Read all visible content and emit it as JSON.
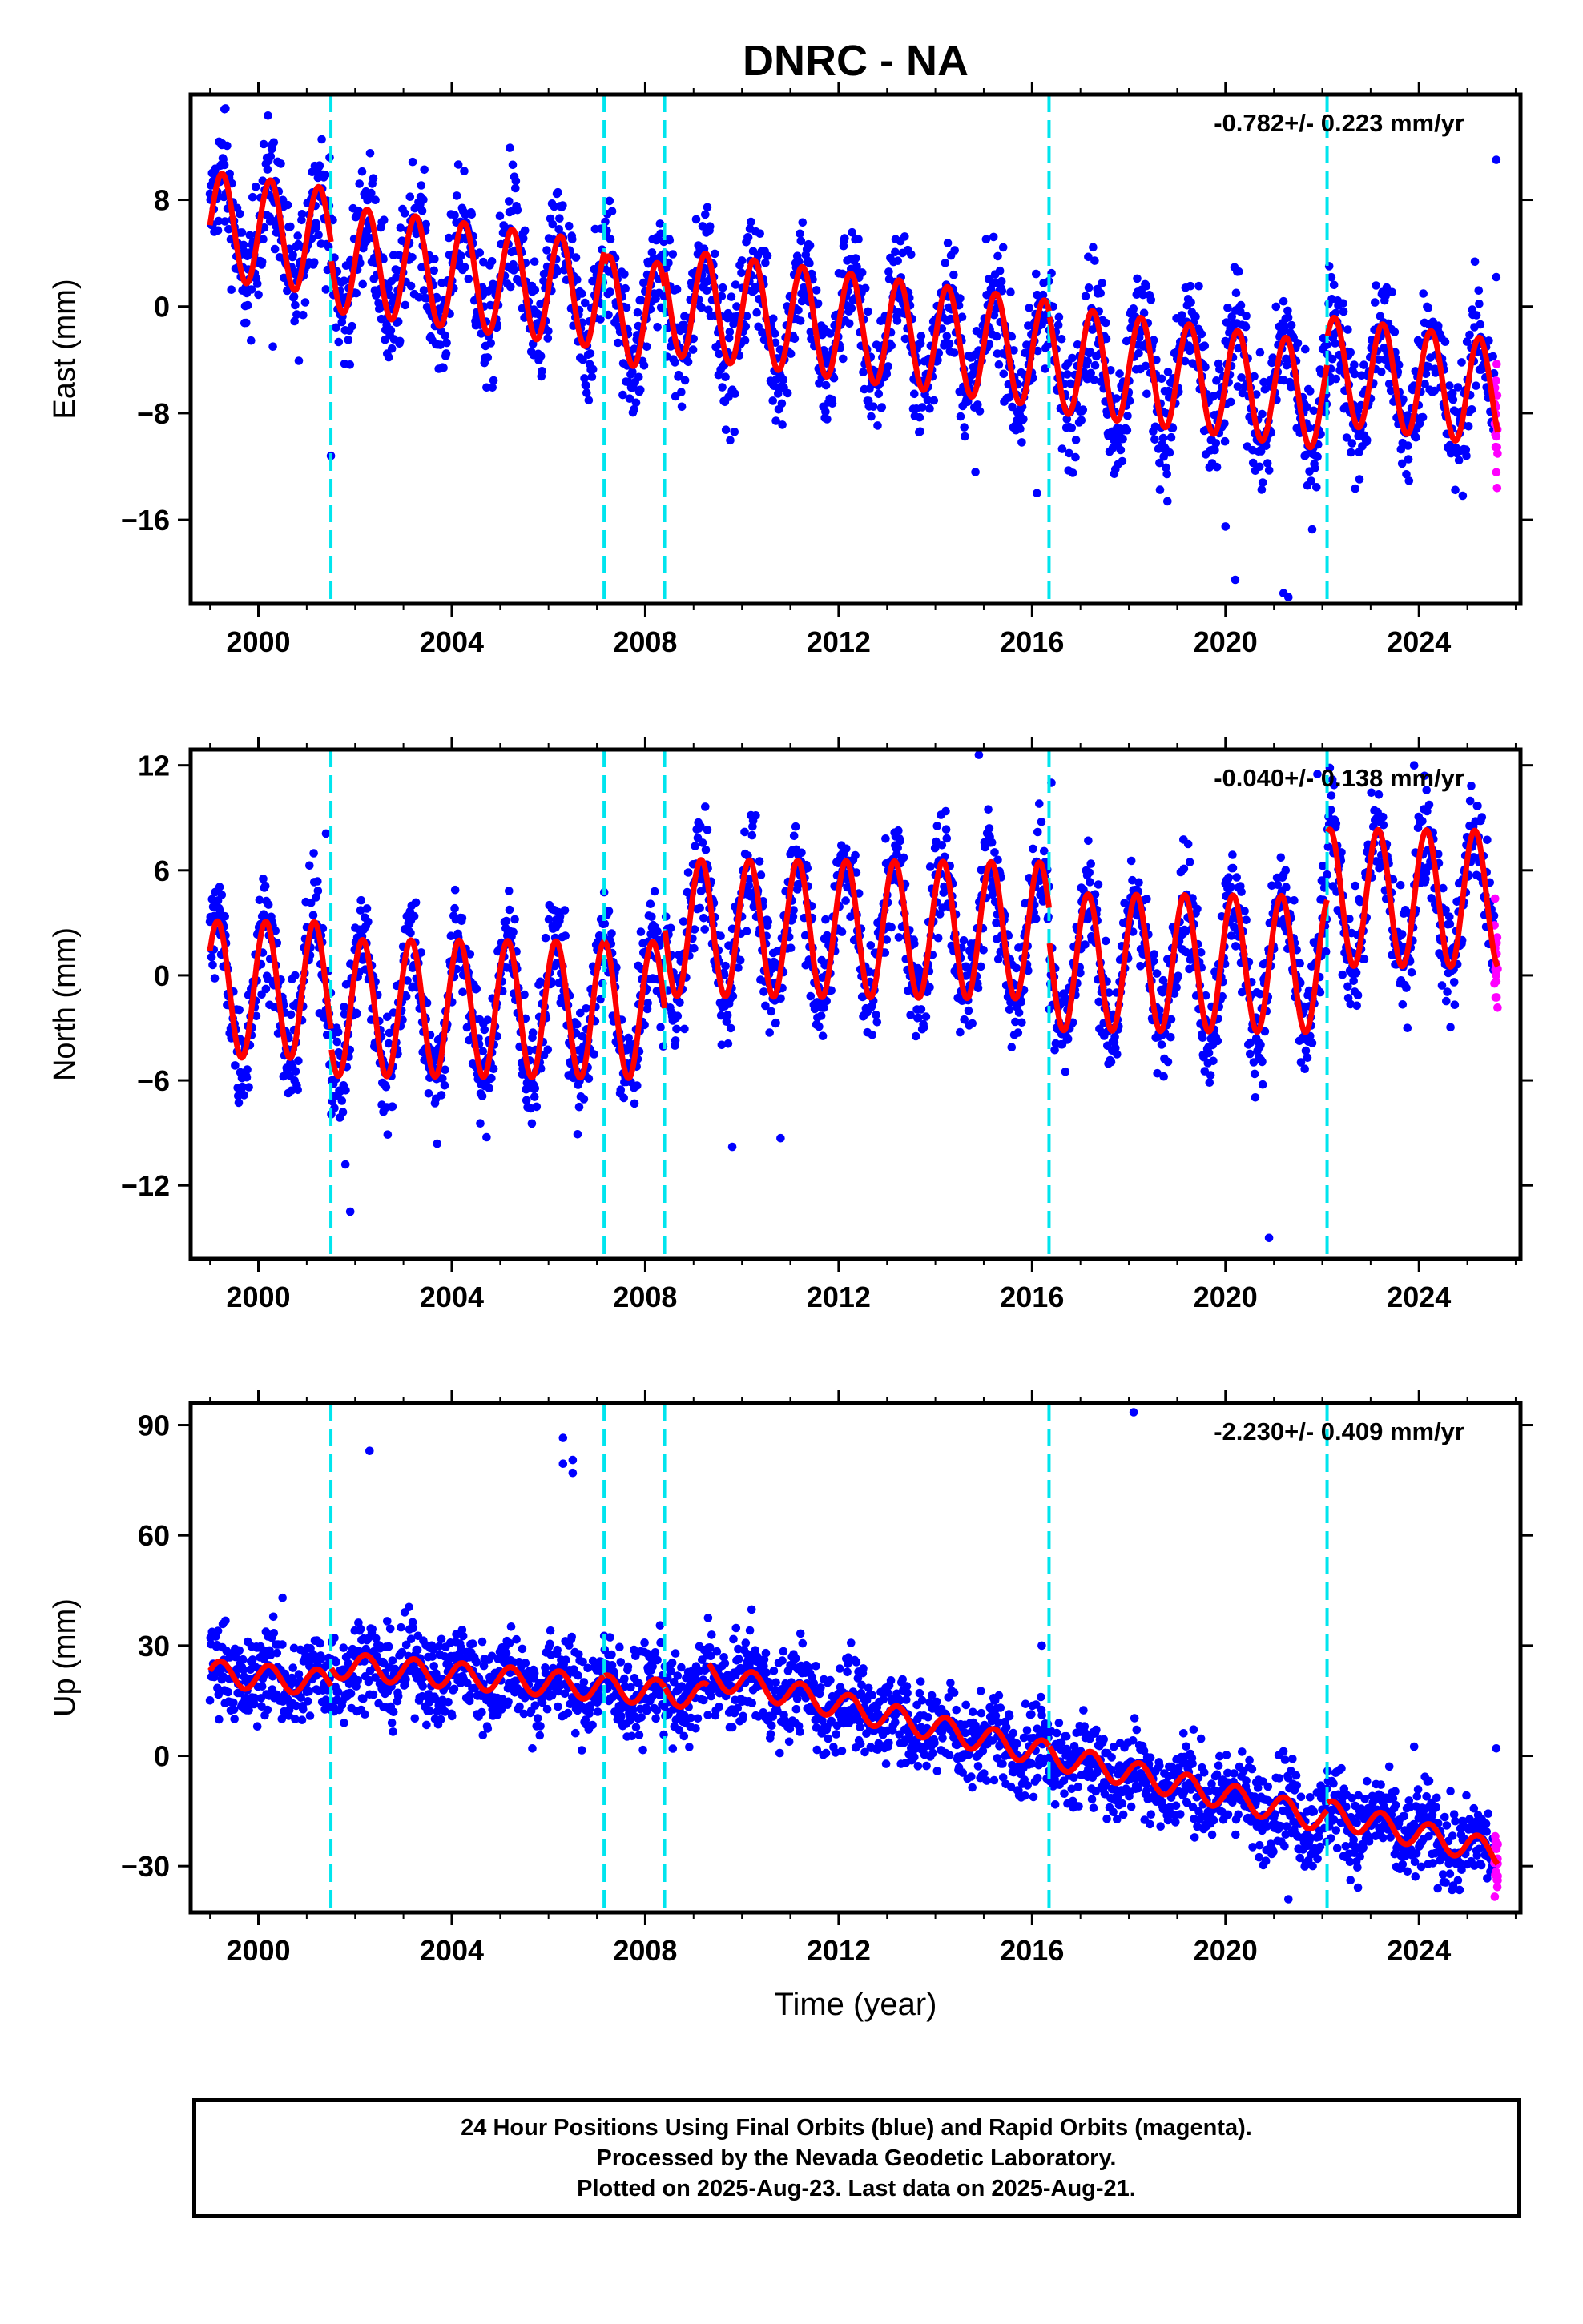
{
  "title": "DNRC - NA",
  "colors": {
    "final_orbits": "#0000ff",
    "rapid_orbits": "#ff00ff",
    "model": "#ff0000",
    "equipment_change": "#00e5ee"
  },
  "chart_data": [
    {
      "type": "scatter",
      "component": "East",
      "ylabel": "East (mm)",
      "xlabel": "",
      "rate_label": "-0.782+/- 0.223 mm/yr",
      "xlim": [
        1998.6,
        2026.1
      ],
      "ylim": [
        -22.3,
        15.9
      ],
      "xticks": [
        2000,
        2004,
        2008,
        2012,
        2016,
        2020,
        2024
      ],
      "yticks": [
        -16,
        -8,
        0,
        8
      ],
      "grid": false,
      "offset_lines": [
        2001.5,
        2007.15,
        2008.4,
        2016.35,
        2022.1
      ],
      "model": {
        "start": 1999.0,
        "end": 2025.63,
        "intercept": 6.1,
        "rate": -0.5,
        "annual_amp": 4.0,
        "phase": 0.0,
        "offsets": [
          [
            2001.5,
            -1.2
          ],
          [
            2007.15,
            -1.0
          ],
          [
            2008.4,
            1.2
          ],
          [
            2016.35,
            -0.3
          ],
          [
            2022.1,
            2.0
          ]
        ]
      },
      "series": [
        {
          "name": "Final Orbits (blue)",
          "x_start": 1999.0,
          "x_end": 2025.56,
          "scatter": 2.3
        },
        {
          "name": "Rapid Orbits (magenta)",
          "x_start": 2025.56,
          "x_end": 2025.63,
          "scatter": 2.3
        }
      ],
      "outliers": [
        [
          1999.3,
          14.8
        ],
        [
          2001.5,
          -11.2
        ],
        [
          2016.1,
          -14.0
        ],
        [
          2020.2,
          -20.5
        ],
        [
          2021.2,
          -21.5
        ],
        [
          2021.3,
          -21.8
        ],
        [
          2020.0,
          -16.5
        ],
        [
          2025.6,
          11.0
        ],
        [
          2025.6,
          2.2
        ],
        [
          2000.3,
          -3.0
        ],
        [
          2005.2,
          11.9
        ]
      ]
    },
    {
      "type": "scatter",
      "component": "North",
      "ylabel": "North (mm)",
      "xlabel": "",
      "rate_label": "-0.040+/- 0.138 mm/yr",
      "xlim": [
        1998.6,
        2026.1
      ],
      "ylim": [
        -16.2,
        12.9
      ],
      "xticks": [
        2000,
        2004,
        2008,
        2012,
        2016,
        2020,
        2024
      ],
      "yticks": [
        -12,
        -6,
        0,
        6,
        12
      ],
      "grid": false,
      "offset_lines": [
        2001.5,
        2007.15,
        2008.4,
        2016.35,
        2022.1
      ],
      "model": {
        "start": 1999.0,
        "end": 2025.63,
        "intercept": -0.8,
        "rate": -0.02,
        "annual_amp": 3.9,
        "phase": 0.6,
        "offsets": [
          [
            2001.5,
            -1.0
          ],
          [
            2007.15,
            0.0
          ],
          [
            2008.4,
            4.7
          ],
          [
            2016.35,
            -1.8
          ],
          [
            2022.1,
            3.8
          ]
        ]
      },
      "series": [
        {
          "name": "Final Orbits (blue)",
          "x_start": 1999.0,
          "x_end": 2025.56,
          "scatter": 1.6
        },
        {
          "name": "Rapid Orbits (magenta)",
          "x_start": 2025.56,
          "x_end": 2025.63,
          "scatter": 1.6
        }
      ],
      "outliers": [
        [
          2001.4,
          8.1
        ],
        [
          2001.9,
          -13.5
        ],
        [
          2014.9,
          12.6
        ],
        [
          2016.4,
          11.0
        ],
        [
          2020.9,
          -15.0
        ],
        [
          2009.8,
          -9.8
        ],
        [
          2010.8,
          -9.3
        ],
        [
          2021.9,
          11.5
        ],
        [
          2023.9,
          12.0
        ],
        [
          2001.8,
          -10.8
        ]
      ]
    },
    {
      "type": "scatter",
      "component": "Up",
      "ylabel": "Up (mm)",
      "xlabel": "Time (year)",
      "rate_label": "-2.230+/- 0.409 mm/yr",
      "xlim": [
        1998.6,
        2026.1
      ],
      "ylim": [
        -42.6,
        96.0
      ],
      "xticks": [
        2000,
        2004,
        2008,
        2012,
        2016,
        2020,
        2024
      ],
      "yticks": [
        -30,
        0,
        30,
        60,
        90
      ],
      "grid": false,
      "offset_lines": [
        2001.5,
        2007.15,
        2008.4,
        2016.35,
        2022.1
      ],
      "model": {
        "start": 1999.0,
        "end": 2025.63,
        "intercept": 22.5,
        "rate": -1.1,
        "annual_amp": 3.5,
        "phase": 0.2,
        "offsets": [
          [
            2001.5,
            5.0
          ],
          [
            2007.15,
            0.0
          ],
          [
            2008.4,
            0.0
          ],
          [
            2009.3,
            6.0
          ],
          [
            2016.35,
            0.0
          ],
          [
            2022.1,
            2.0
          ]
        ],
        "slope_after": [
          [
            2009.3,
            -2.0
          ]
        ]
      },
      "series": [
        {
          "name": "Final Orbits (blue)",
          "x_start": 1999.0,
          "x_end": 2025.56,
          "scatter": 6.0
        },
        {
          "name": "Rapid Orbits (magenta)",
          "x_start": 2025.56,
          "x_end": 2025.63,
          "scatter": 6.0
        }
      ],
      "outliers": [
        [
          2002.3,
          83.0
        ],
        [
          2006.3,
          86.5
        ],
        [
          2006.3,
          79.5
        ],
        [
          2006.5,
          80.5
        ],
        [
          2006.5,
          77.0
        ],
        [
          2018.1,
          93.5
        ],
        [
          2010.2,
          39.8
        ],
        [
          2016.2,
          30.0
        ],
        [
          2009.3,
          37.5
        ],
        [
          2000.5,
          43.0
        ],
        [
          2023.9,
          2.5
        ],
        [
          2025.6,
          2.0
        ],
        [
          2021.3,
          -39.0
        ]
      ]
    }
  ],
  "footer": {
    "line1": "24 Hour Positions Using Final Orbits (blue) and Rapid Orbits (magenta).",
    "line2": "Processed by the Nevada Geodetic Laboratory.",
    "line3": "Plotted on 2025-Aug-23. Last data on 2025-Aug-21."
  }
}
